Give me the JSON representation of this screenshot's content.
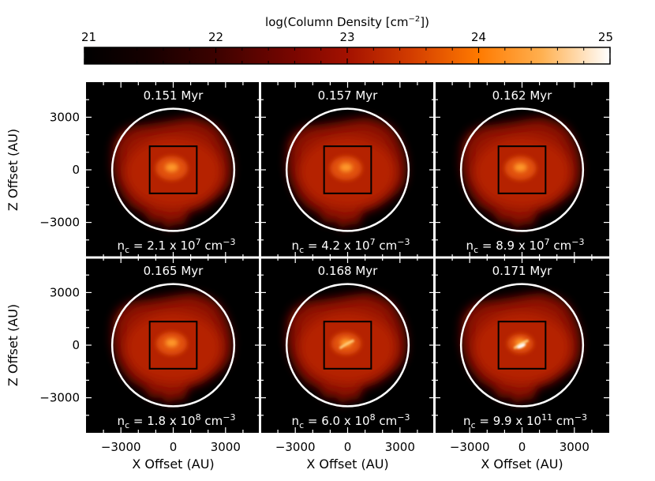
{
  "chart_data": {
    "type": "heatmap",
    "colorbar": {
      "title": "log(Column Density [cm",
      "title_exp": "−2",
      "title_end": "])",
      "ticks": [
        "21",
        "22",
        "23",
        "24",
        "25"
      ],
      "range": [
        21,
        25
      ],
      "colormap": "hot-red: black → dark red → orange → white"
    },
    "xlabel": "X Offset (AU)",
    "ylabel": "Z Offset (AU)",
    "xticks": [
      {
        "value": -3000,
        "label": "−3000"
      },
      {
        "value": 0,
        "label": "0"
      },
      {
        "value": 3000,
        "label": "3000"
      }
    ],
    "yticks": [
      {
        "value": 3000,
        "label": "3000"
      },
      {
        "value": 0,
        "label": "0"
      },
      {
        "value": -3000,
        "label": "−3000"
      }
    ],
    "xlim": [
      -5000,
      5000
    ],
    "ylim": [
      -5000,
      5000
    ],
    "circle_radius_au": 3500,
    "box_half_width_au": 1350,
    "panels": [
      {
        "time": "0.151 Myr",
        "nc_label": "n",
        "nc_sub": "c",
        "nc_mant": " = 2.1 x 10",
        "nc_exp": "7",
        "nc_unit": " cm",
        "nc_unit_exp": "−3",
        "core_peak": 23.9
      },
      {
        "time": "0.157 Myr",
        "nc_label": "n",
        "nc_sub": "c",
        "nc_mant": " = 4.2 x 10",
        "nc_exp": "7",
        "nc_unit": " cm",
        "nc_unit_exp": "−3",
        "core_peak": 23.95
      },
      {
        "time": "0.162 Myr",
        "nc_label": "n",
        "nc_sub": "c",
        "nc_mant": " = 8.9 x 10",
        "nc_exp": "7",
        "nc_unit": " cm",
        "nc_unit_exp": "−3",
        "core_peak": 24.0
      },
      {
        "time": "0.165 Myr",
        "nc_label": "n",
        "nc_sub": "c",
        "nc_mant": " = 1.8 x 10",
        "nc_exp": "8",
        "nc_unit": " cm",
        "nc_unit_exp": "−3",
        "core_peak": 24.1
      },
      {
        "time": "0.168 Myr",
        "nc_label": "n",
        "nc_sub": "c",
        "nc_mant": " = 6.0 x 10",
        "nc_exp": "8",
        "nc_unit": " cm",
        "nc_unit_exp": "−3",
        "core_peak": 24.3
      },
      {
        "time": "0.171 Myr",
        "nc_label": "n",
        "nc_sub": "c",
        "nc_mant": " = 9.9 x 10",
        "nc_exp": "11",
        "nc_unit": " cm",
        "nc_unit_exp": "−3",
        "core_peak": 24.9
      }
    ],
    "colors": {
      "panel_bg": "#000000",
      "circle": "#ffffff",
      "box": "#000000",
      "separator": "#ffffff"
    }
  }
}
